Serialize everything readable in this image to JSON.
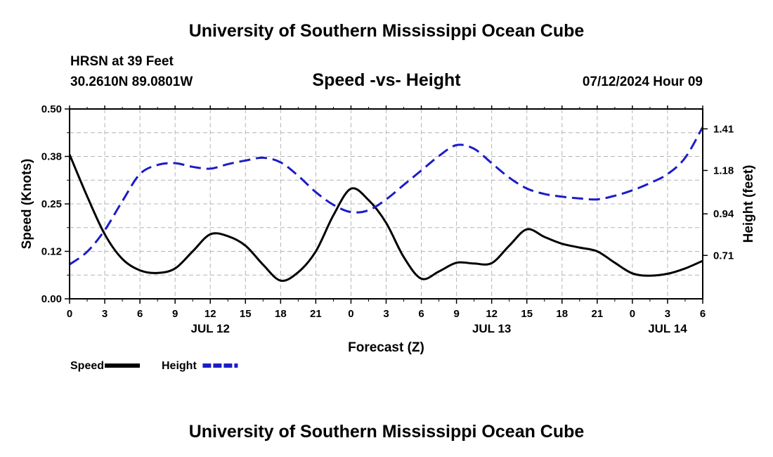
{
  "header": {
    "title": "University of Southern Mississippi Ocean Cube",
    "station": "HRSN at 39 Feet",
    "coords": "30.2610N  89.0801W",
    "subtitle": "Speed -vs- Height",
    "issued": "07/12/2024 Hour 09"
  },
  "footer": {
    "title": "University of Southern Mississippi Ocean Cube"
  },
  "chart_data": {
    "type": "line",
    "title": "Speed -vs- Height",
    "xlabel": "Forecast (Z)",
    "ylabel": "Speed (Knots)",
    "y2label": "Height (feet)",
    "x_range": [
      0,
      54
    ],
    "x_ticks": [
      {
        "x": 0,
        "label": "0"
      },
      {
        "x": 3,
        "label": "3"
      },
      {
        "x": 6,
        "label": "6"
      },
      {
        "x": 9,
        "label": "9"
      },
      {
        "x": 12,
        "label": "12"
      },
      {
        "x": 15,
        "label": "15"
      },
      {
        "x": 18,
        "label": "18"
      },
      {
        "x": 21,
        "label": "21"
      },
      {
        "x": 24,
        "label": "0"
      },
      {
        "x": 27,
        "label": "3"
      },
      {
        "x": 30,
        "label": "6"
      },
      {
        "x": 33,
        "label": "9"
      },
      {
        "x": 36,
        "label": "12"
      },
      {
        "x": 39,
        "label": "15"
      },
      {
        "x": 42,
        "label": "18"
      },
      {
        "x": 45,
        "label": "21"
      },
      {
        "x": 48,
        "label": "0"
      },
      {
        "x": 51,
        "label": "3"
      },
      {
        "x": 54,
        "label": "6"
      }
    ],
    "date_labels": [
      {
        "x": 12,
        "label": "JUL 12"
      },
      {
        "x": 36,
        "label": "JUL 13"
      },
      {
        "x": 51,
        "label": "JUL 14"
      }
    ],
    "y_range": [
      0,
      0.5
    ],
    "y_ticks": [
      {
        "v": 0.0,
        "label": "0.00"
      },
      {
        "v": 0.125,
        "label": "0.12"
      },
      {
        "v": 0.25,
        "label": "0.25"
      },
      {
        "v": 0.375,
        "label": "0.38"
      },
      {
        "v": 0.5,
        "label": "0.50"
      }
    ],
    "y2_range": [
      0.47,
      1.52
    ],
    "y2_ticks": [
      {
        "v": 0.71,
        "label": "0.71"
      },
      {
        "v": 0.94,
        "label": "0.94"
      },
      {
        "v": 1.18,
        "label": "1.18"
      },
      {
        "v": 1.41,
        "label": "1.41"
      }
    ],
    "grid": true,
    "legend_position": "bottom-left",
    "series": [
      {
        "name": "Speed",
        "axis": "left",
        "color": "#000000",
        "dash": "solid",
        "x": [
          0,
          1.5,
          3,
          4.5,
          6,
          7.5,
          9,
          10.5,
          12,
          13.5,
          15,
          16.5,
          18,
          19.5,
          21,
          22.5,
          24,
          25.5,
          27,
          28.5,
          30,
          31.5,
          33,
          34.5,
          36,
          37.5,
          39,
          40.5,
          42,
          43.5,
          45,
          46.5,
          48,
          49.5,
          51,
          52.5,
          54
        ],
        "y": [
          0.38,
          0.27,
          0.17,
          0.105,
          0.075,
          0.068,
          0.08,
          0.125,
          0.17,
          0.165,
          0.14,
          0.09,
          0.048,
          0.07,
          0.125,
          0.22,
          0.29,
          0.26,
          0.2,
          0.11,
          0.053,
          0.072,
          0.095,
          0.093,
          0.094,
          0.14,
          0.183,
          0.163,
          0.145,
          0.135,
          0.125,
          0.095,
          0.067,
          0.061,
          0.066,
          0.08,
          0.1
        ]
      },
      {
        "name": "Height",
        "axis": "right",
        "color": "#1c1cc8",
        "dash": "dashed",
        "x": [
          0,
          1.5,
          3,
          4.5,
          6,
          7.5,
          9,
          10.5,
          12,
          13.5,
          15,
          16.5,
          18,
          19.5,
          21,
          22.5,
          24,
          25.5,
          27,
          28.5,
          30,
          31.5,
          33,
          34.5,
          36,
          37.5,
          39,
          40.5,
          42,
          43.5,
          45,
          46.5,
          48,
          49.5,
          51,
          52.5,
          54
        ],
        "y": [
          0.66,
          0.73,
          0.85,
          1.01,
          1.16,
          1.21,
          1.22,
          1.2,
          1.19,
          1.215,
          1.235,
          1.25,
          1.225,
          1.15,
          1.06,
          0.99,
          0.95,
          0.96,
          1.02,
          1.1,
          1.18,
          1.26,
          1.32,
          1.3,
          1.22,
          1.14,
          1.08,
          1.05,
          1.035,
          1.025,
          1.02,
          1.04,
          1.07,
          1.11,
          1.16,
          1.25,
          1.42
        ]
      }
    ],
    "legend": [
      {
        "label": "Speed",
        "color": "#000000",
        "dash": "solid"
      },
      {
        "label": "Height",
        "color": "#1c1cc8",
        "dash": "dashed"
      }
    ]
  }
}
